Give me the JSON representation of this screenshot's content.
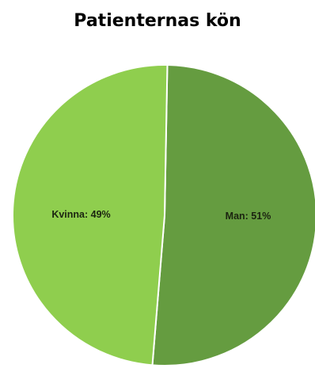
{
  "chart_data": {
    "type": "pie",
    "title": "Patienternas kön",
    "slices": [
      {
        "label": "Man",
        "value": 51,
        "display": "Man: 51%",
        "color": "#659c40"
      },
      {
        "label": "Kvinna",
        "value": 49,
        "display": "Kvinna: 49%",
        "color": "#8fce4e"
      }
    ],
    "unit": "%",
    "legend": "none",
    "border_color": "#ffffff"
  }
}
